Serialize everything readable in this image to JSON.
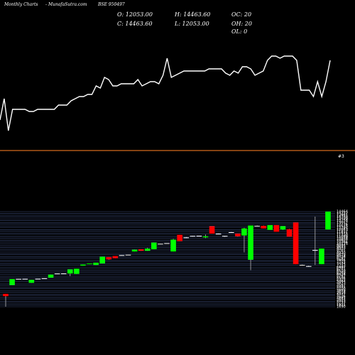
{
  "header": {
    "site_label": "Monthly Charts",
    "brand": "MunafaSutra.com",
    "symbol": "BSE 950497"
  },
  "ohlc": {
    "open": "O: 12053.00",
    "close": "C: 14463.60",
    "high": "H: 14463.60",
    "low": "L: 12053.00",
    "oc": "OC: 20",
    "oh": "OH: 20",
    "ol": "OL: 0"
  },
  "marker_label": "#3",
  "colors": {
    "background": "#000000",
    "up": "#00ff00",
    "down": "#ff0000",
    "doji": "#ffffff",
    "separator": "#d2691e",
    "grid": "#3f4f7f",
    "line": "#ffffff"
  },
  "chart_data": [
    {
      "type": "line",
      "description_panel": "upper",
      "values": [
        420,
        520,
        370,
        470,
        470,
        470,
        470,
        460,
        460,
        470,
        470,
        470,
        470,
        470,
        490,
        490,
        490,
        510,
        520,
        530,
        530,
        540,
        540,
        580,
        570,
        620,
        610,
        580,
        580,
        590,
        590,
        590,
        590,
        610,
        580,
        590,
        600,
        600,
        590,
        630,
        710,
        620,
        630,
        640,
        650,
        650,
        650,
        650,
        650,
        650,
        660,
        660,
        660,
        660,
        640,
        630,
        650,
        640,
        670,
        670,
        660,
        630,
        640,
        650,
        700,
        720,
        720,
        710,
        720,
        720,
        720,
        700,
        560,
        560,
        560,
        530,
        600,
        530,
        600,
        700
      ],
      "ylim": [
        300,
        800
      ]
    },
    {
      "type": "candlestick",
      "y_ticks": [
        "14464",
        "14222",
        "13981",
        "13740",
        "13499",
        "13258",
        "13017",
        "12776",
        "12535",
        "12294",
        "12053",
        "11812",
        "11571",
        "11330",
        "11089",
        "10848",
        "10607",
        "10366",
        "10125",
        "9884",
        "9643",
        "9402",
        "9161",
        "8920",
        "8679",
        "8438",
        "8197",
        "7956",
        "7715",
        "7474",
        "7233",
        "6992",
        "6751",
        "6510",
        "6269",
        "6028",
        "5787",
        "5546",
        "5305",
        "5064",
        "4823",
        "4582",
        "4341",
        "4100",
        "3859",
        "3618",
        "3377",
        "3136",
        "2895",
        "2654",
        "2413",
        "2172",
        "1931",
        "1690"
      ],
      "ylim": [
        1690,
        14464
      ],
      "candles": [
        {
          "o": 3420,
          "h": 3420,
          "l": 1690,
          "c": 3100
        },
        {
          "o": 4600,
          "h": 5400,
          "l": 4600,
          "c": 5400
        },
        {
          "o": 5420,
          "h": 5420,
          "l": 5380,
          "c": 5430
        },
        {
          "o": 5430,
          "h": 5430,
          "l": 5380,
          "c": 5440
        },
        {
          "o": 4900,
          "h": 5300,
          "l": 4900,
          "c": 5300
        },
        {
          "o": 5430,
          "h": 5450,
          "l": 5400,
          "c": 5450
        },
        {
          "o": 5500,
          "h": 5520,
          "l": 5480,
          "c": 5520
        },
        {
          "o": 5600,
          "h": 6000,
          "l": 5600,
          "c": 6000
        },
        {
          "o": 6100,
          "h": 6150,
          "l": 6100,
          "c": 6150
        },
        {
          "o": 6140,
          "h": 6160,
          "l": 6100,
          "c": 6160
        },
        {
          "o": 6150,
          "h": 6700,
          "l": 5800,
          "c": 6700
        },
        {
          "o": 6100,
          "h": 6800,
          "l": 6100,
          "c": 6800
        },
        {
          "o": 7200,
          "h": 7350,
          "l": 7200,
          "c": 7350
        },
        {
          "o": 7400,
          "h": 7500,
          "l": 7400,
          "c": 7500
        },
        {
          "o": 7300,
          "h": 7600,
          "l": 7300,
          "c": 7600
        },
        {
          "o": 7500,
          "h": 8400,
          "l": 7500,
          "c": 8400
        },
        {
          "o": 8350,
          "h": 8350,
          "l": 8000,
          "c": 8050
        },
        {
          "o": 8500,
          "h": 8500,
          "l": 8200,
          "c": 8200
        },
        {
          "o": 8600,
          "h": 8620,
          "l": 8580,
          "c": 8620
        },
        {
          "o": 8650,
          "h": 8670,
          "l": 8630,
          "c": 8680
        },
        {
          "o": 9100,
          "h": 9350,
          "l": 9100,
          "c": 9350
        },
        {
          "o": 9400,
          "h": 9400,
          "l": 9200,
          "c": 9200
        },
        {
          "o": 9200,
          "h": 9600,
          "l": 9200,
          "c": 9500
        },
        {
          "o": 9400,
          "h": 10300,
          "l": 9400,
          "c": 10300
        },
        {
          "o": 10100,
          "h": 10150,
          "l": 10100,
          "c": 10150
        },
        {
          "o": 10200,
          "h": 10220,
          "l": 10180,
          "c": 10220
        },
        {
          "o": 9100,
          "h": 10800,
          "l": 9100,
          "c": 10700
        },
        {
          "o": 11350,
          "h": 11350,
          "l": 10500,
          "c": 10500
        },
        {
          "o": 11000,
          "h": 11050,
          "l": 10900,
          "c": 11000
        },
        {
          "o": 11150,
          "h": 11200,
          "l": 11100,
          "c": 11200
        },
        {
          "o": 11180,
          "h": 11220,
          "l": 11150,
          "c": 11220
        },
        {
          "o": 11000,
          "h": 11400,
          "l": 10900,
          "c": 11150
        },
        {
          "o": 12500,
          "h": 12500,
          "l": 11500,
          "c": 11500
        },
        {
          "o": 11500,
          "h": 11520,
          "l": 11450,
          "c": 11500
        },
        {
          "o": 11150,
          "h": 11200,
          "l": 11050,
          "c": 11200
        },
        {
          "o": 11700,
          "h": 11730,
          "l": 11650,
          "c": 11700
        },
        {
          "o": 11500,
          "h": 11500,
          "l": 11100,
          "c": 11150
        },
        {
          "o": 11250,
          "h": 12300,
          "l": 9000,
          "c": 12200
        },
        {
          "o": 8000,
          "h": 12600,
          "l": 6600,
          "c": 12600
        },
        {
          "o": 12550,
          "h": 12600,
          "l": 12500,
          "c": 12550
        },
        {
          "o": 12550,
          "h": 12600,
          "l": 12200,
          "c": 12200
        },
        {
          "o": 12000,
          "h": 12650,
          "l": 12000,
          "c": 12650
        },
        {
          "o": 12650,
          "h": 12650,
          "l": 11750,
          "c": 11750
        },
        {
          "o": 12050,
          "h": 12500,
          "l": 12000,
          "c": 12500
        },
        {
          "o": 12100,
          "h": 12150,
          "l": 11100,
          "c": 11100
        },
        {
          "o": 13000,
          "h": 13000,
          "l": 7400,
          "c": 7400
        },
        {
          "o": 7300,
          "h": 7350,
          "l": 7250,
          "c": 7300
        },
        {
          "o": 7150,
          "h": 7200,
          "l": 7050,
          "c": 7150
        },
        {
          "o": 9300,
          "h": 13800,
          "l": 7300,
          "c": 9300
        },
        {
          "o": 7400,
          "h": 9500,
          "l": 7400,
          "c": 9500
        },
        {
          "o": 12053,
          "h": 14464,
          "l": 12053,
          "c": 14464
        }
      ]
    }
  ]
}
